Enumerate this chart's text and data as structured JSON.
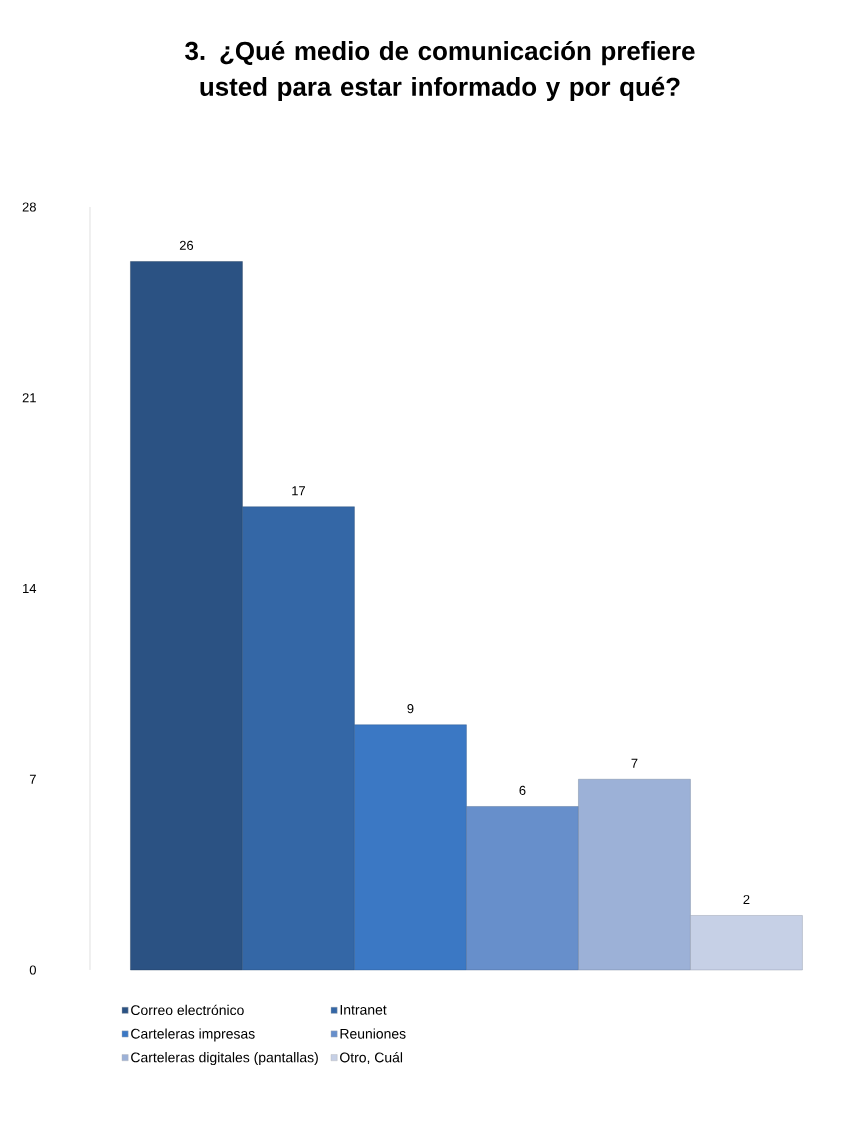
{
  "chart_data": {
    "type": "bar",
    "title": "3. ¿Qué medio de comunicación prefiere usted para estar informado y por qué?",
    "categories": [
      null
    ],
    "series": [
      {
        "name": "Correo electrónico",
        "color": "#2b5283",
        "values": [
          26
        ]
      },
      {
        "name": "Intranet",
        "color": "#3467a6",
        "values": [
          17
        ]
      },
      {
        "name": "Carteleras impresas",
        "color": "#3b78c4",
        "values": [
          9
        ]
      },
      {
        "name": "Reuniones",
        "color": "#678fcb",
        "values": [
          6
        ]
      },
      {
        "name": "Carteleras digitales (pantallas)",
        "color": "#9cb1d7",
        "values": [
          7
        ]
      },
      {
        "name": "Otro, Cuál",
        "color": "#c6d0e6",
        "values": [
          2
        ]
      }
    ],
    "ylim": [
      0,
      28
    ],
    "yticks": [
      0,
      7,
      14,
      21,
      28
    ],
    "data_labels": true,
    "legend": "bottom",
    "grid": false
  }
}
